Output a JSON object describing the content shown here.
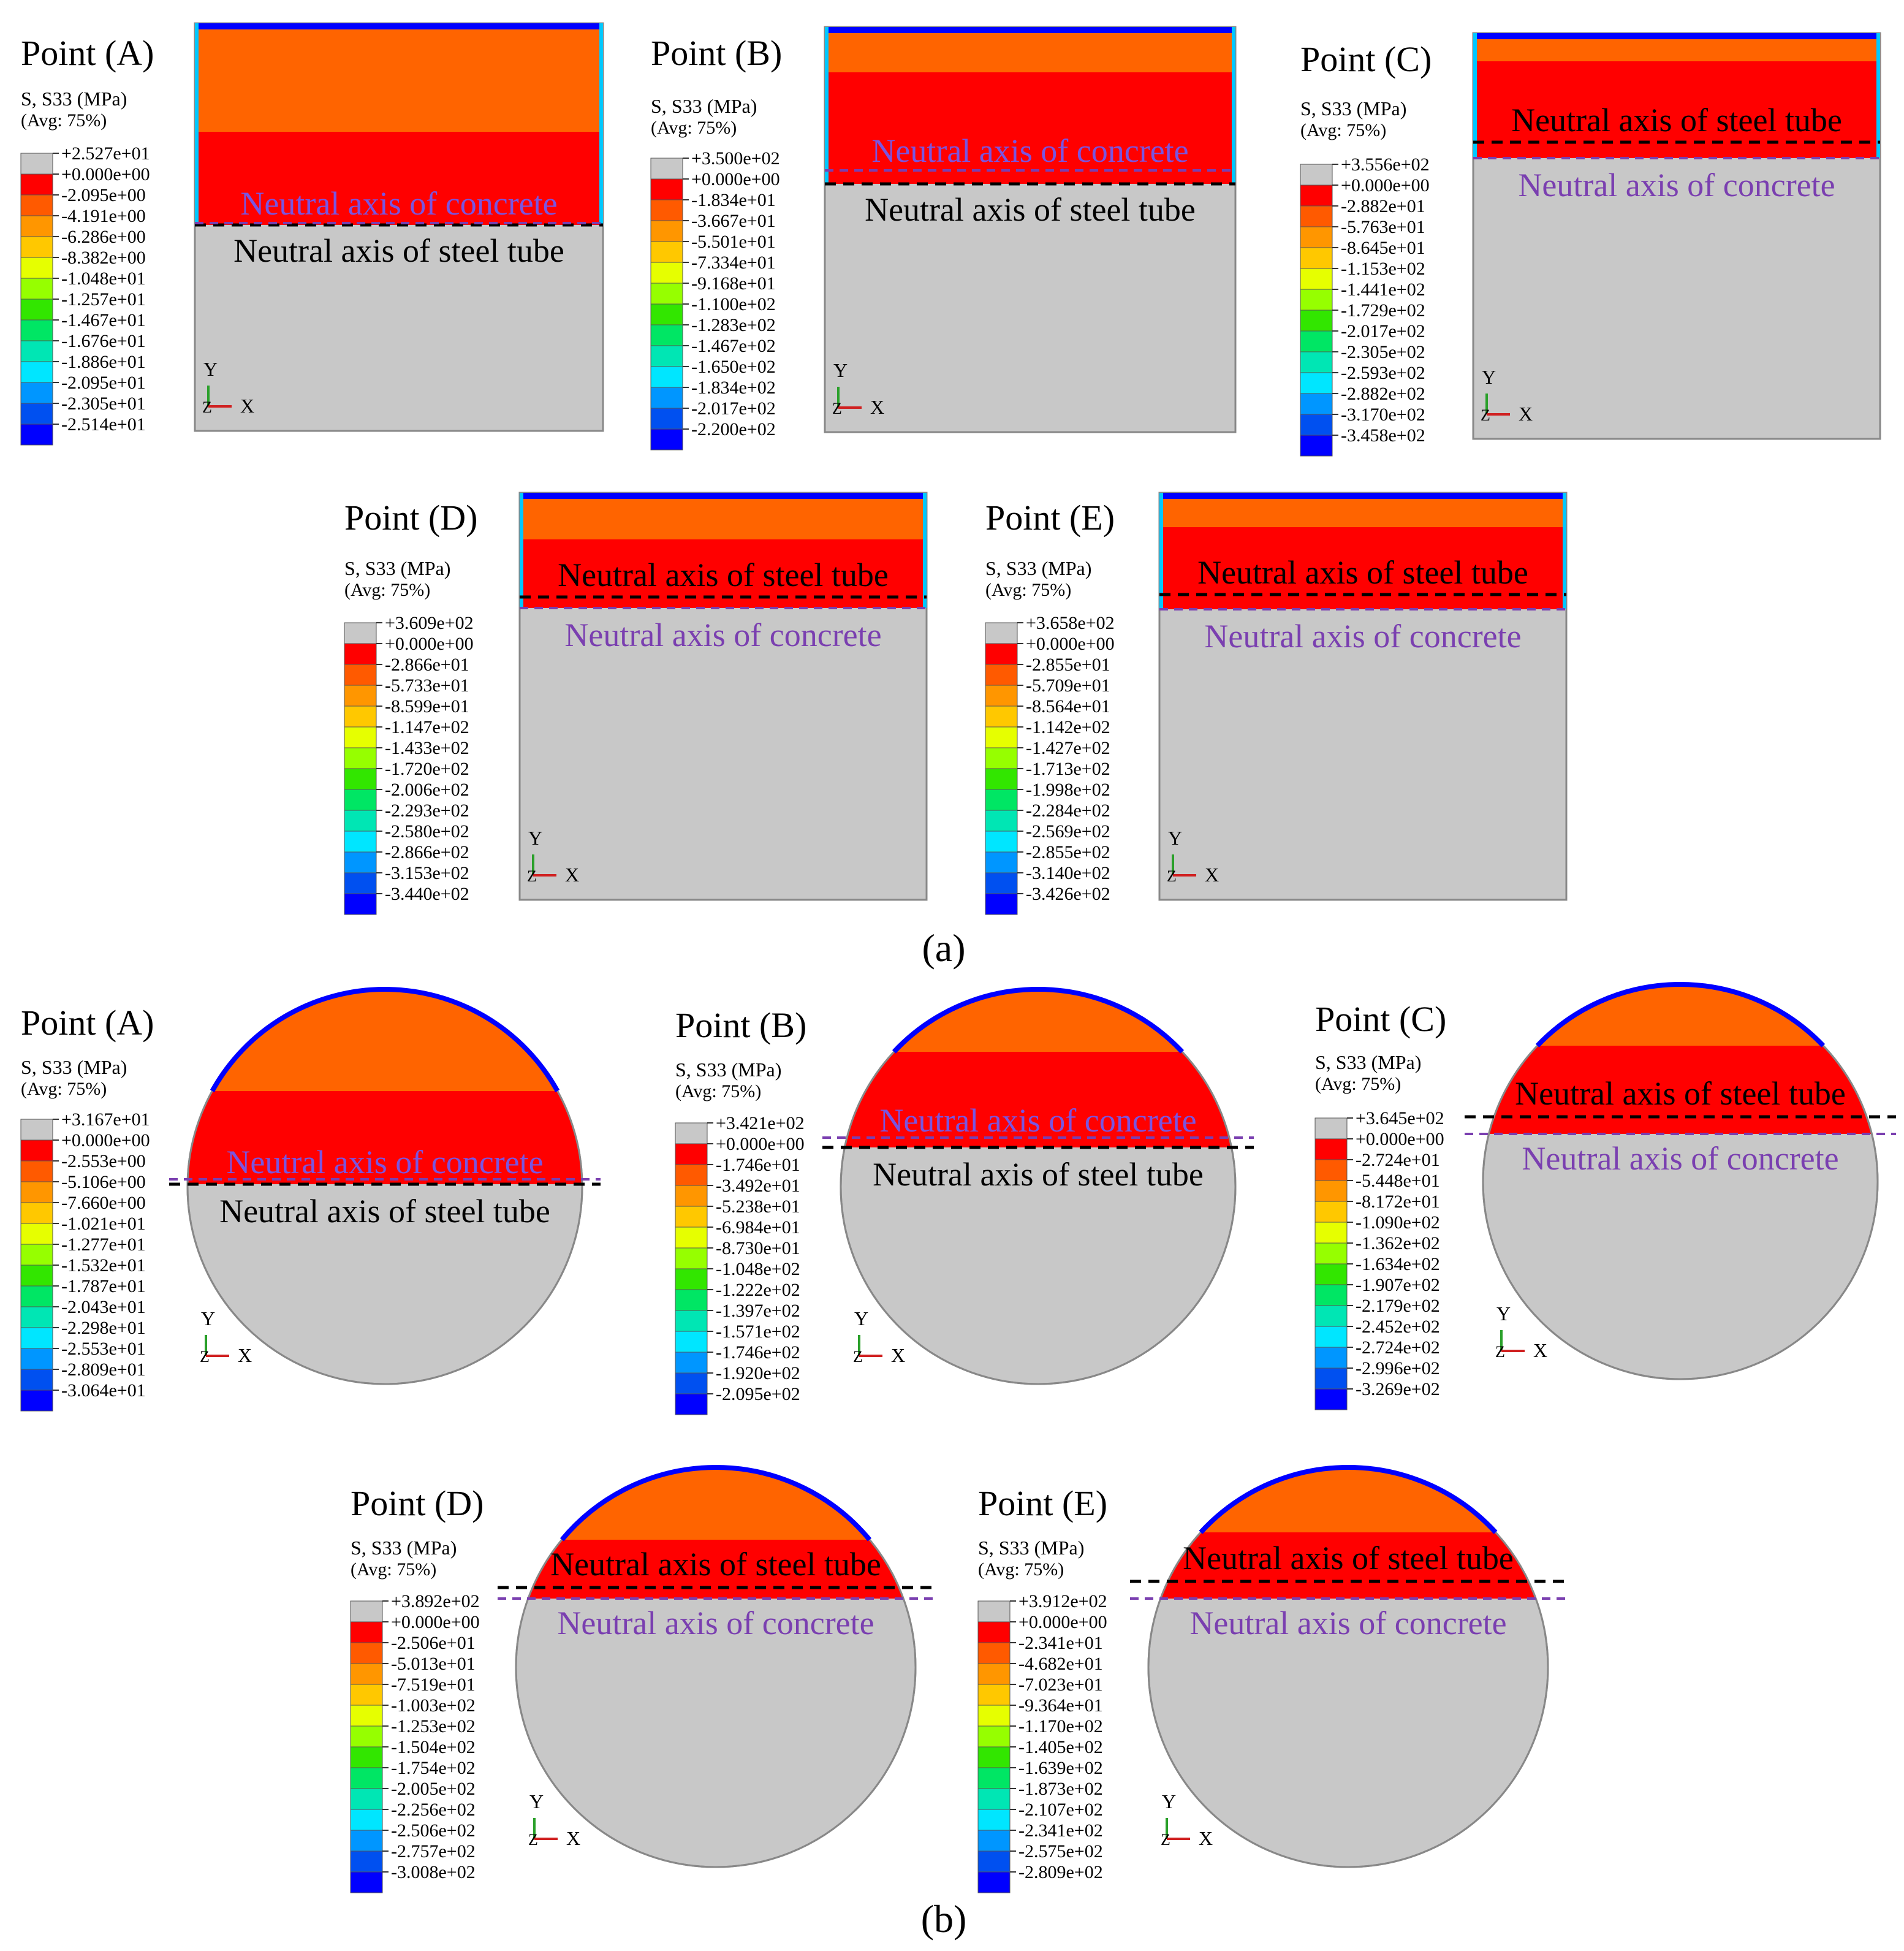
{
  "figure": {
    "part_a_label": "(a)",
    "part_b_label": "(b)",
    "legend_title": "S, S33 (MPa)",
    "legend_avg": "(Avg: 75%)",
    "axis_y": "Y",
    "axis_x": "X",
    "axis_z": "Z",
    "neutral_steel_label": "Neutral axis of steel tube",
    "neutral_concrete_label": "Neutral axis of concrete",
    "colors": {
      "gray": "#c8c8c8",
      "red": "#ff0000",
      "orange": "#ff6400",
      "yellow": "#f0f000",
      "blue": "#0000ff",
      "steel_line": "#000000",
      "concrete_line": "#7a3fb0",
      "concrete_text_on_red": "#7a55e0",
      "legend_scale": [
        "#c8c8c8",
        "#ff0000",
        "#ff5a00",
        "#ff9600",
        "#ffc800",
        "#e6ff00",
        "#96ff00",
        "#32e600",
        "#00e664",
        "#00e6b4",
        "#00e6ff",
        "#0096ff",
        "#0050f0",
        "#0000ff"
      ]
    }
  },
  "panels": [
    {
      "id": "a-A",
      "shape": "rect",
      "point": "Point (A)",
      "legend": [
        "+2.527e+01",
        "+0.000e+00",
        "-2.095e+00",
        "-4.191e+00",
        "-6.286e+00",
        "-8.382e+00",
        "-1.048e+01",
        "-1.257e+01",
        "-1.467e+01",
        "-1.676e+01",
        "-1.886e+01",
        "-2.095e+01",
        "-2.305e+01",
        "-2.514e+01"
      ],
      "order": "concrete_above",
      "concrete_label_on_red": true
    },
    {
      "id": "a-B",
      "shape": "rect",
      "point": "Point (B)",
      "legend": [
        "+3.500e+02",
        "+0.000e+00",
        "-1.834e+01",
        "-3.667e+01",
        "-5.501e+01",
        "-7.334e+01",
        "-9.168e+01",
        "-1.100e+02",
        "-1.283e+02",
        "-1.467e+02",
        "-1.650e+02",
        "-1.834e+02",
        "-2.017e+02",
        "-2.200e+02"
      ],
      "order": "concrete_above",
      "concrete_label_on_red": true
    },
    {
      "id": "a-C",
      "shape": "rect",
      "point": "Point (C)",
      "legend": [
        "+3.556e+02",
        "+0.000e+00",
        "-2.882e+01",
        "-5.763e+01",
        "-8.645e+01",
        "-1.153e+02",
        "-1.441e+02",
        "-1.729e+02",
        "-2.017e+02",
        "-2.305e+02",
        "-2.593e+02",
        "-2.882e+02",
        "-3.170e+02",
        "-3.458e+02"
      ],
      "order": "steel_above",
      "concrete_label_on_red": false
    },
    {
      "id": "a-D",
      "shape": "rect",
      "point": "Point (D)",
      "legend": [
        "+3.609e+02",
        "+0.000e+00",
        "-2.866e+01",
        "-5.733e+01",
        "-8.599e+01",
        "-1.147e+02",
        "-1.433e+02",
        "-1.720e+02",
        "-2.006e+02",
        "-2.293e+02",
        "-2.580e+02",
        "-2.866e+02",
        "-3.153e+02",
        "-3.440e+02"
      ],
      "order": "steel_above",
      "concrete_label_on_red": false
    },
    {
      "id": "a-E",
      "shape": "rect",
      "point": "Point (E)",
      "legend": [
        "+3.658e+02",
        "+0.000e+00",
        "-2.855e+01",
        "-5.709e+01",
        "-8.564e+01",
        "-1.142e+02",
        "-1.427e+02",
        "-1.713e+02",
        "-1.998e+02",
        "-2.284e+02",
        "-2.569e+02",
        "-2.855e+02",
        "-3.140e+02",
        "-3.426e+02"
      ],
      "order": "steel_above",
      "concrete_label_on_red": false
    },
    {
      "id": "b-A",
      "shape": "circle",
      "point": "Point (A)",
      "legend": [
        "+3.167e+01",
        "+0.000e+00",
        "-2.553e+00",
        "-5.106e+00",
        "-7.660e+00",
        "-1.021e+01",
        "-1.277e+01",
        "-1.532e+01",
        "-1.787e+01",
        "-2.043e+01",
        "-2.298e+01",
        "-2.553e+01",
        "-2.809e+01",
        "-3.064e+01"
      ],
      "order": "concrete_above",
      "concrete_label_on_red": true
    },
    {
      "id": "b-B",
      "shape": "circle",
      "point": "Point (B)",
      "legend": [
        "+3.421e+02",
        "+0.000e+00",
        "-1.746e+01",
        "-3.492e+01",
        "-5.238e+01",
        "-6.984e+01",
        "-8.730e+01",
        "-1.048e+02",
        "-1.222e+02",
        "-1.397e+02",
        "-1.571e+02",
        "-1.746e+02",
        "-1.920e+02",
        "-2.095e+02"
      ],
      "order": "concrete_above",
      "concrete_label_on_red": true
    },
    {
      "id": "b-C",
      "shape": "circle",
      "point": "Point (C)",
      "legend": [
        "+3.645e+02",
        "+0.000e+00",
        "-2.724e+01",
        "-5.448e+01",
        "-8.172e+01",
        "-1.090e+02",
        "-1.362e+02",
        "-1.634e+02",
        "-1.907e+02",
        "-2.179e+02",
        "-2.452e+02",
        "-2.724e+02",
        "-2.996e+02",
        "-3.269e+02"
      ],
      "order": "steel_above",
      "concrete_label_on_red": false
    },
    {
      "id": "b-D",
      "shape": "circle",
      "point": "Point (D)",
      "legend": [
        "+3.892e+02",
        "+0.000e+00",
        "-2.506e+01",
        "-5.013e+01",
        "-7.519e+01",
        "-1.003e+02",
        "-1.253e+02",
        "-1.504e+02",
        "-1.754e+02",
        "-2.005e+02",
        "-2.256e+02",
        "-2.506e+02",
        "-2.757e+02",
        "-3.008e+02"
      ],
      "order": "steel_above",
      "concrete_label_on_red": false
    },
    {
      "id": "b-E",
      "shape": "circle",
      "point": "Point (E)",
      "legend": [
        "+3.912e+02",
        "+0.000e+00",
        "-2.341e+01",
        "-4.682e+01",
        "-7.023e+01",
        "-9.364e+01",
        "-1.170e+02",
        "-1.405e+02",
        "-1.639e+02",
        "-1.873e+02",
        "-2.107e+02",
        "-2.341e+02",
        "-2.575e+02",
        "-2.809e+02"
      ],
      "order": "steel_above",
      "concrete_label_on_red": false
    }
  ]
}
